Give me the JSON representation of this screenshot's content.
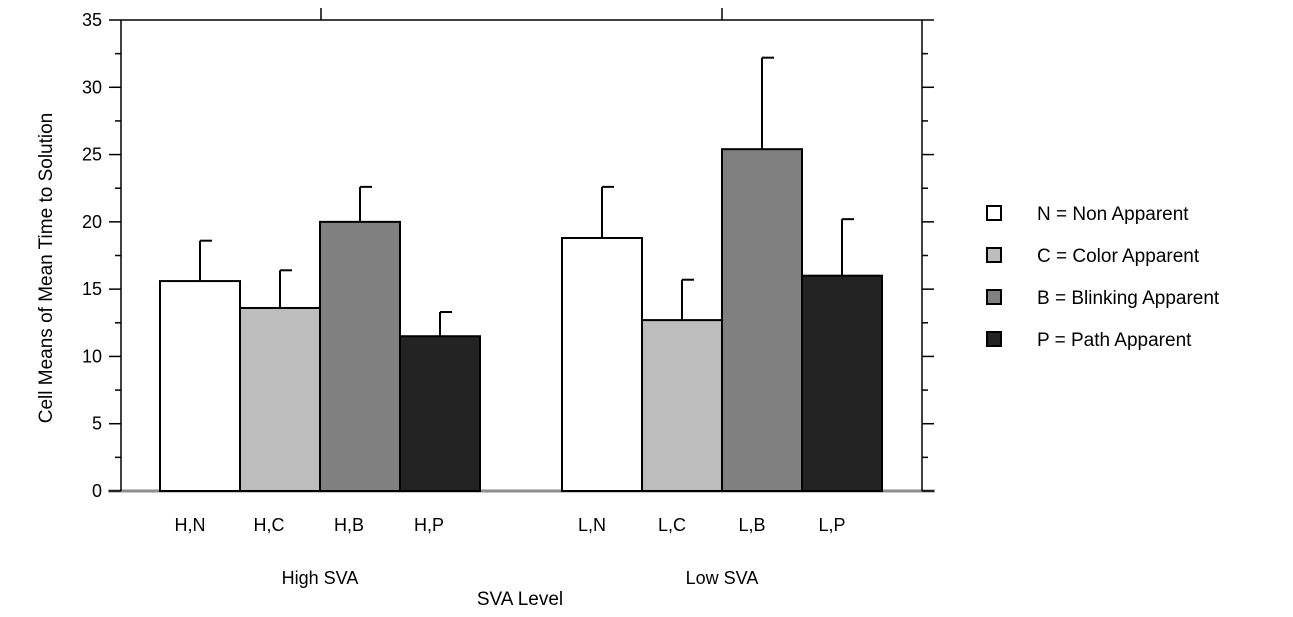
{
  "chart_data": {
    "type": "bar",
    "title": "",
    "xlabel": "SVA Level",
    "ylabel": "Cell Means of Mean Time to Solution",
    "ylim": [
      0,
      35
    ],
    "yticks": [
      0,
      5,
      10,
      15,
      20,
      25,
      30,
      35
    ],
    "grid": false,
    "legend_position": "right",
    "groups": [
      {
        "label": "High SVA",
        "bars": [
          {
            "label": "H,N",
            "series": "N",
            "value": 15.6,
            "error": 3.0
          },
          {
            "label": "H,C",
            "series": "C",
            "value": 13.6,
            "error": 2.8
          },
          {
            "label": "H,B",
            "series": "B",
            "value": 20.0,
            "error": 2.6
          },
          {
            "label": "H,P",
            "series": "P",
            "value": 11.5,
            "error": 1.8
          }
        ]
      },
      {
        "label": "Low SVA",
        "bars": [
          {
            "label": "L,N",
            "series": "N",
            "value": 18.8,
            "error": 3.8
          },
          {
            "label": "L,C",
            "series": "C",
            "value": 12.7,
            "error": 3.0
          },
          {
            "label": "L,B",
            "series": "B",
            "value": 25.4,
            "error": 6.8
          },
          {
            "label": "L,P",
            "series": "P",
            "value": 16.0,
            "error": 4.2
          }
        ]
      }
    ],
    "series": [
      {
        "key": "N",
        "name": "N = Non Apparent",
        "color": "#ffffff"
      },
      {
        "key": "C",
        "name": "C = Color Apparent",
        "color": "#bdbdbd"
      },
      {
        "key": "B",
        "name": "B = Blinking Apparent",
        "color": "#808080"
      },
      {
        "key": "P",
        "name": "P = Path Apparent",
        "color": "#232323"
      }
    ]
  }
}
